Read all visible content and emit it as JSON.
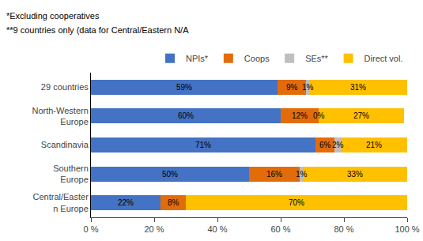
{
  "chart_data": {
    "type": "bar",
    "orientation": "horizontal",
    "stacked": true,
    "data_labels": true,
    "categories": [
      "29 countries",
      "North-Western\nEurope",
      "Scandinavia",
      "Southern\nEurope",
      "Central/Easter\nn Europe"
    ],
    "series": [
      {
        "name": "NPIs*",
        "color": "#4472C4",
        "values": [
          59,
          60,
          71,
          50,
          22
        ],
        "value_labels": [
          "59%",
          "60%",
          "71%",
          "50%",
          "22%"
        ]
      },
      {
        "name": "Coops",
        "color": "#E36C0A",
        "values": [
          9,
          12,
          6,
          16,
          8
        ],
        "value_labels": [
          "9%",
          "12%",
          "6%",
          "16%",
          "8%"
        ]
      },
      {
        "name": "SEs**",
        "color": "#BFBFBF",
        "values": [
          1,
          0,
          2,
          1,
          0
        ],
        "value_labels": [
          "1%",
          "0%",
          "2%",
          "1%",
          null
        ]
      },
      {
        "name": "Direct vol.",
        "color": "#FFC000",
        "values": [
          31,
          27,
          21,
          33,
          70
        ],
        "value_labels": [
          "31%",
          "27%",
          "21%",
          "33%",
          "70%"
        ]
      }
    ],
    "annotations": [
      "*Excluding cooperatives",
      "**9 countries only (data for Central/Eastern N/A"
    ],
    "xlim": [
      0,
      100
    ],
    "xticks": [
      {
        "value": 0,
        "label": "0 %"
      },
      {
        "value": 20,
        "label": "20 %"
      },
      {
        "value": 40,
        "label": "40 %"
      },
      {
        "value": 60,
        "label": "60 %"
      },
      {
        "value": 80,
        "label": "80 %"
      },
      {
        "value": 100,
        "label": "100 %"
      }
    ],
    "grid": false,
    "legend": "upper right"
  }
}
